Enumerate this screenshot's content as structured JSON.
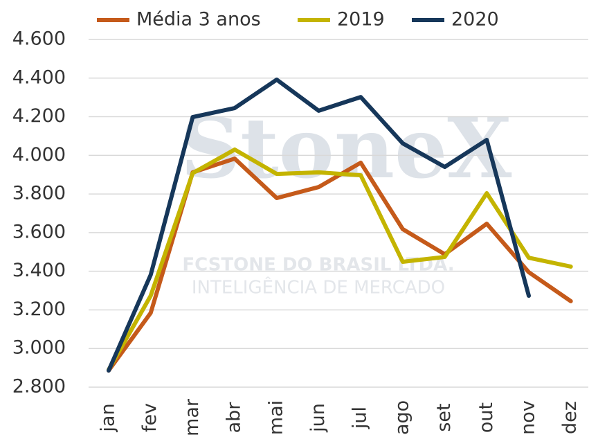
{
  "chart_data": {
    "type": "line",
    "categories": [
      "jan",
      "fev",
      "mar",
      "abr",
      "mai",
      "jun",
      "jul",
      "ago",
      "set",
      "out",
      "nov",
      "dez"
    ],
    "series": [
      {
        "name": "Média 3 anos",
        "color": "#c55a1a",
        "values": [
          2886,
          3184,
          3912,
          3983,
          3779,
          3836,
          3962,
          3618,
          3488,
          3646,
          3395,
          3245
        ]
      },
      {
        "name": "2019",
        "color": "#c4b400",
        "values": [
          2890,
          3273,
          3908,
          4030,
          3904,
          3912,
          3897,
          3449,
          3474,
          3804,
          3470,
          3424
        ]
      },
      {
        "name": "2020",
        "color": "#16375a",
        "values": [
          2886,
          3381,
          4198,
          4245,
          4392,
          4231,
          4302,
          4062,
          3940,
          4080,
          3273,
          null
        ]
      }
    ],
    "ylim": [
      2800,
      4600
    ],
    "yticks": [
      {
        "value": 2800,
        "label": "2.800"
      },
      {
        "value": 3000,
        "label": "3.000"
      },
      {
        "value": 3200,
        "label": "3.200"
      },
      {
        "value": 3400,
        "label": "3.400"
      },
      {
        "value": 3600,
        "label": "3.600"
      },
      {
        "value": 3800,
        "label": "3.800"
      },
      {
        "value": 4000,
        "label": "4.000"
      },
      {
        "value": 4200,
        "label": "4.200"
      },
      {
        "value": 4400,
        "label": "4.400"
      },
      {
        "value": 4600,
        "label": "4.600"
      }
    ],
    "grid": true,
    "legend": "top",
    "watermark": [
      "StoneX",
      "FCSTONE DO BRASIL LTDA.",
      "INTELIGÊNCIA DE MERCADO"
    ]
  }
}
